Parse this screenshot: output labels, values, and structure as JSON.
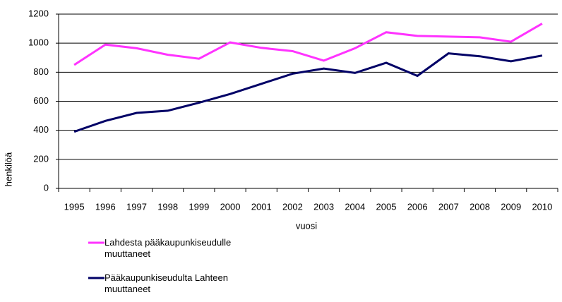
{
  "chart_data": {
    "type": "line",
    "x_label": "vuosi",
    "y_label": "henkilöä",
    "categories": [
      "1995",
      "1996",
      "1997",
      "1998",
      "1999",
      "2000",
      "2001",
      "2002",
      "2003",
      "2004",
      "2005",
      "2006",
      "2007",
      "2008",
      "2009",
      "2010"
    ],
    "series": [
      {
        "name": "Lahdesta pääkaupunkiseudulle muuttaneet",
        "color": "#ff33ff",
        "values": [
          850,
          990,
          965,
          920,
          893,
          1005,
          968,
          945,
          880,
          965,
          1075,
          1050,
          1045,
          1040,
          1010,
          1135
        ]
      },
      {
        "name": "Pääkaupunkiseudulta Lahteen muuttaneet",
        "color": "#000066",
        "values": [
          390,
          465,
          520,
          535,
          590,
          650,
          720,
          790,
          825,
          795,
          865,
          775,
          930,
          910,
          875,
          915
        ]
      }
    ],
    "ylim": [
      0,
      1200
    ],
    "yticks": [
      0,
      200,
      400,
      600,
      800,
      1000,
      1200
    ],
    "grid": true
  }
}
